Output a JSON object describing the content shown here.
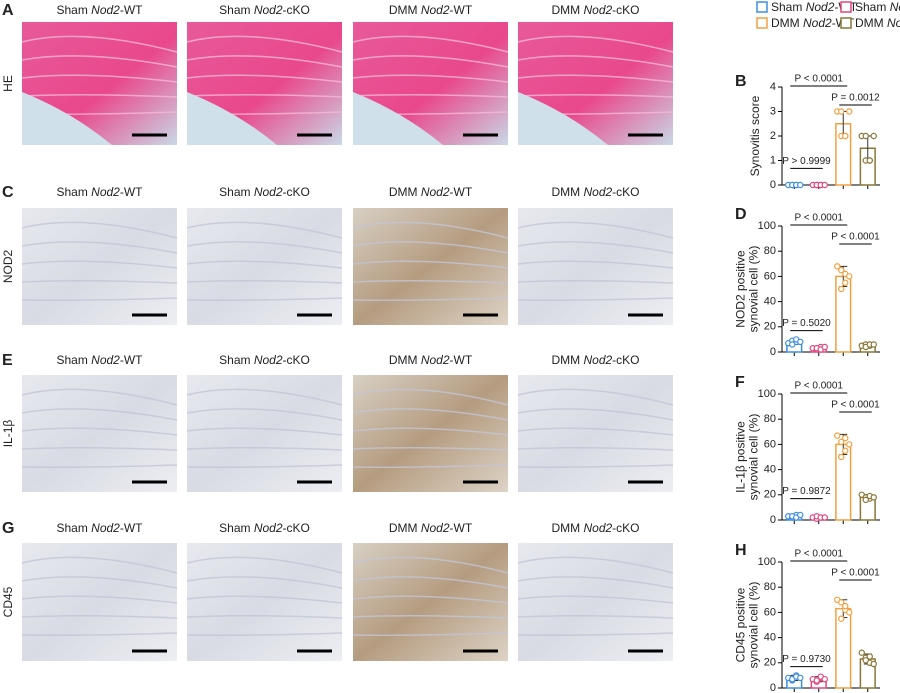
{
  "groups": [
    {
      "pre": "Sham ",
      "gene": "Nod2",
      "post": "-WT",
      "color": "#3d8ee0"
    },
    {
      "pre": "Sham ",
      "gene": "Nod2",
      "post": "-cKO",
      "color": "#e2467c"
    },
    {
      "pre": "DMM ",
      "gene": "Nod2",
      "post": "-WT",
      "color": "#f0a040"
    },
    {
      "pre": "DMM ",
      "gene": "Nod2",
      "post": "-cKO",
      "color": "#8a7636"
    }
  ],
  "panels": [
    {
      "letter": "A",
      "stain": "HE"
    },
    {
      "letter": "C",
      "stain": "NOD2"
    },
    {
      "letter": "E",
      "stain": "IL-1β"
    },
    {
      "letter": "G",
      "stain": "CD45"
    }
  ],
  "chart_data": [
    {
      "type": "bar",
      "panel": "B",
      "ylabel": [
        "Synovitis score"
      ],
      "ylim": [
        0,
        4
      ],
      "yticks": [
        0,
        1,
        2,
        3,
        4
      ],
      "categories": [
        null,
        null,
        null,
        null
      ],
      "values": [
        0,
        0,
        2.5,
        1.5
      ],
      "errors": [
        0,
        0,
        0.5,
        0.5
      ],
      "points": [
        [
          0,
          0,
          0,
          0,
          0,
          0
        ],
        [
          0,
          0,
          0,
          0,
          0,
          0
        ],
        [
          3,
          3,
          2,
          2,
          2,
          3
        ],
        [
          2,
          2,
          1,
          1,
          1,
          2
        ]
      ],
      "annotations": [
        "P < 0.0001",
        "P = 0.0012",
        "P > 0.9999"
      ]
    },
    {
      "type": "bar",
      "panel": "D",
      "ylabel": [
        "NOD2 positive",
        "synovial cell (%)"
      ],
      "ylim": [
        0,
        100
      ],
      "yticks": [
        0,
        20,
        40,
        60,
        80,
        100
      ],
      "categories": [
        null,
        null,
        null,
        null
      ],
      "values": [
        8,
        3,
        60,
        5
      ],
      "errors": [
        2,
        1,
        8,
        1
      ],
      "points": [
        [
          7,
          9,
          8,
          6,
          10,
          8
        ],
        [
          3,
          2,
          4,
          3,
          2,
          4
        ],
        [
          68,
          65,
          55,
          50,
          62,
          60
        ],
        [
          5,
          6,
          5,
          4,
          6,
          6
        ]
      ],
      "annotations": [
        "P < 0.0001",
        "P < 0.0001",
        "P = 0.5020"
      ]
    },
    {
      "type": "bar",
      "panel": "F",
      "ylabel": [
        "IL-1β positive",
        "synovial cell (%)"
      ],
      "ylim": [
        0,
        100
      ],
      "yticks": [
        0,
        20,
        40,
        60,
        80,
        100
      ],
      "categories": [
        null,
        null,
        null,
        null
      ],
      "values": [
        3,
        2,
        60,
        18
      ],
      "errors": [
        1,
        1,
        8,
        2
      ],
      "points": [
        [
          3,
          2,
          4,
          3,
          2,
          4
        ],
        [
          2,
          1,
          2,
          3,
          2,
          2
        ],
        [
          67,
          62,
          55,
          50,
          65,
          60
        ],
        [
          20,
          18,
          17,
          16,
          19,
          18
        ]
      ],
      "annotations": [
        "P < 0.0001",
        "P < 0.0001",
        "P = 0.9872"
      ]
    },
    {
      "type": "bar",
      "panel": "H",
      "ylabel": [
        "CD45 positive",
        "synovial cell (%)"
      ],
      "ylim": [
        0,
        100
      ],
      "yticks": [
        0,
        20,
        40,
        60,
        80,
        100
      ],
      "categories": [
        null,
        null,
        null,
        null
      ],
      "values": [
        8,
        7,
        63,
        23
      ],
      "errors": [
        2,
        2,
        7,
        4
      ],
      "points": [
        [
          8,
          6,
          10,
          7,
          9,
          8
        ],
        [
          7,
          5,
          8,
          6,
          9,
          7
        ],
        [
          70,
          68,
          62,
          55,
          65,
          60
        ],
        [
          28,
          24,
          20,
          22,
          25,
          19
        ]
      ],
      "annotations": [
        "P < 0.0001",
        "P < 0.0001",
        "P = 0.9730"
      ]
    }
  ]
}
